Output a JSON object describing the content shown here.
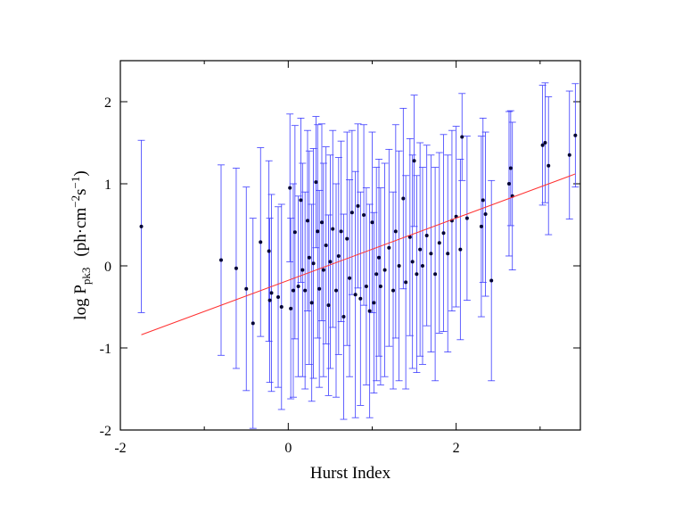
{
  "chart_data": {
    "type": "scatter",
    "xlabel": "Hurst Index",
    "ylabel": [
      "log P",
      "pk3",
      "(ph·cm",
      "−2",
      "s",
      "−1",
      ")"
    ],
    "xlim": [
      -2,
      3.48
    ],
    "ylim": [
      -2,
      2.5
    ],
    "xticks": [
      -2,
      0,
      2
    ],
    "xminorticks": [
      -1,
      1,
      3
    ],
    "yticks": [
      -2,
      -1,
      0,
      1,
      2
    ],
    "series": [
      {
        "color": "#000033",
        "errcolor": "#3b3bff",
        "x": [
          -1.75,
          -0.8,
          -0.62,
          -0.5,
          -0.42,
          -0.33,
          -0.23,
          -0.22,
          -0.2,
          -0.12,
          -0.08,
          0.02,
          0.03,
          0.06,
          0.08,
          0.12,
          0.15,
          0.17,
          0.2,
          0.23,
          0.25,
          0.28,
          0.3,
          0.33,
          0.35,
          0.37,
          0.4,
          0.42,
          0.45,
          0.48,
          0.5,
          0.53,
          0.57,
          0.6,
          0.63,
          0.66,
          0.7,
          0.73,
          0.76,
          0.8,
          0.83,
          0.86,
          0.9,
          0.93,
          0.97,
          1.0,
          1.02,
          1.05,
          1.08,
          1.1,
          1.15,
          1.2,
          1.25,
          1.28,
          1.32,
          1.37,
          1.4,
          1.45,
          1.48,
          1.5,
          1.53,
          1.57,
          1.6,
          1.65,
          1.7,
          1.75,
          1.8,
          1.85,
          1.9,
          1.95,
          2.0,
          2.05,
          2.07,
          2.13,
          2.3,
          2.32,
          2.35,
          2.42,
          2.63,
          2.65,
          2.67,
          3.03,
          3.06,
          3.1,
          3.35,
          3.42
        ],
        "y": [
          0.48,
          0.07,
          -0.03,
          -0.28,
          -0.7,
          0.29,
          0.18,
          -0.42,
          -0.33,
          -0.38,
          -0.5,
          0.95,
          -0.52,
          -0.3,
          0.41,
          -0.25,
          0.8,
          -0.05,
          -0.3,
          0.55,
          0.1,
          -0.45,
          0.03,
          1.02,
          0.42,
          -0.28,
          0.53,
          -0.05,
          0.25,
          -0.48,
          0.05,
          0.45,
          -0.3,
          0.12,
          0.42,
          -0.62,
          0.33,
          -0.15,
          0.65,
          -0.35,
          0.73,
          -0.4,
          0.62,
          -0.25,
          -0.55,
          0.53,
          -0.45,
          -0.1,
          0.1,
          -0.25,
          -0.05,
          0.22,
          -0.3,
          0.42,
          0.0,
          0.82,
          -0.2,
          0.35,
          0.05,
          1.28,
          -0.1,
          0.2,
          0.0,
          0.37,
          0.15,
          -0.1,
          0.28,
          0.4,
          0.15,
          0.55,
          0.6,
          0.2,
          1.57,
          0.58,
          0.48,
          0.8,
          0.63,
          -0.18,
          1.0,
          1.19,
          0.85,
          1.47,
          1.5,
          1.22,
          1.35,
          1.59
        ],
        "yerr": [
          1.05,
          1.16,
          1.22,
          1.24,
          1.28,
          1.15,
          1.1,
          1.0,
          1.2,
          1.1,
          1.25,
          0.9,
          1.1,
          1.3,
          1.3,
          1.1,
          1.0,
          1.3,
          1.2,
          1.1,
          1.3,
          1.2,
          1.4,
          0.8,
          1.3,
          1.2,
          1.2,
          1.3,
          1.2,
          1.1,
          1.3,
          1.2,
          1.3,
          1.2,
          1.1,
          1.25,
          1.3,
          1.2,
          1.0,
          1.5,
          1.0,
          1.3,
          1.1,
          1.2,
          1.3,
          1.1,
          1.1,
          1.3,
          1.2,
          1.2,
          1.3,
          1.2,
          1.2,
          1.3,
          1.4,
          1.1,
          1.3,
          1.2,
          1.3,
          0.8,
          1.2,
          1.3,
          1.2,
          1.1,
          1.2,
          1.3,
          1.1,
          1.2,
          1.2,
          1.1,
          1.1,
          1.1,
          0.53,
          1.0,
          1.1,
          1.0,
          1.0,
          1.22,
          0.88,
          0.7,
          0.9,
          0.73,
          0.73,
          0.84,
          0.78,
          0.63
        ]
      }
    ],
    "fit": {
      "color": "#ff3030",
      "x": [
        -1.75,
        3.42
      ],
      "y": [
        -0.84,
        1.12
      ]
    }
  }
}
